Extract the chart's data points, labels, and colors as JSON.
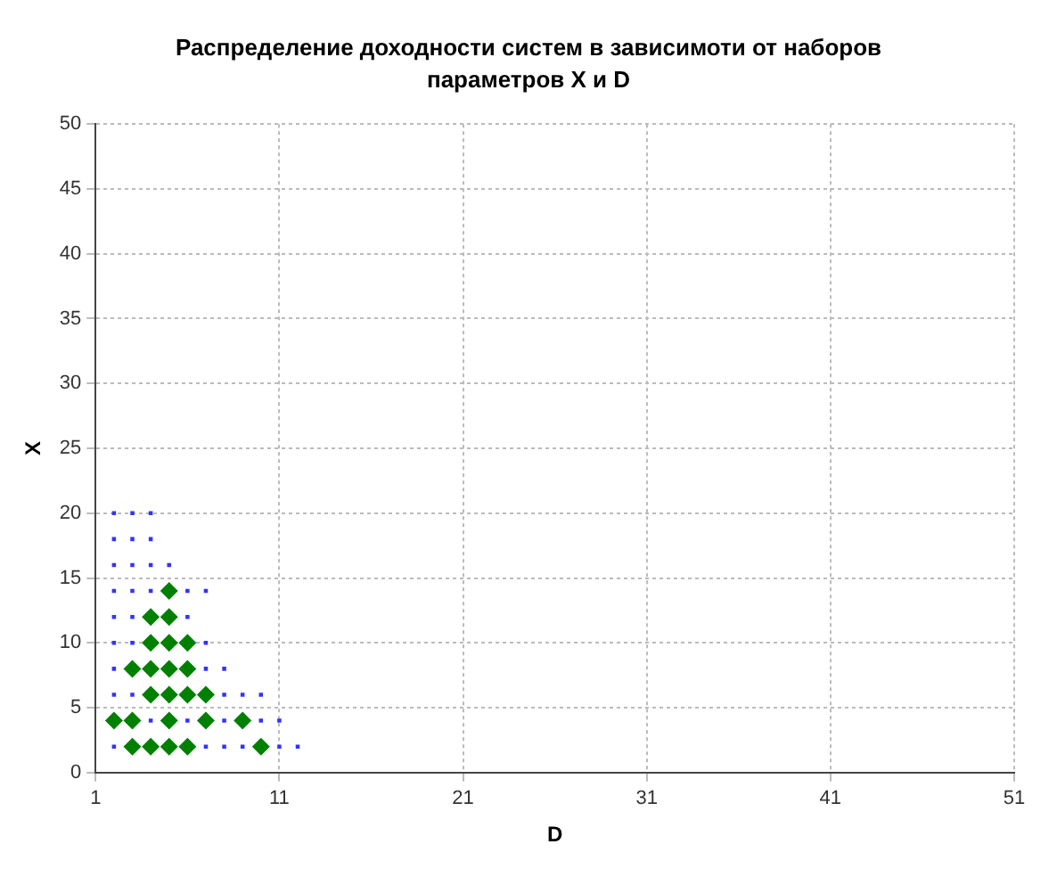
{
  "chart_data": {
    "type": "scatter",
    "title": "Распределение доходности систем в зависимоти от наборов параметров X и D",
    "xlabel": "D",
    "ylabel": "X",
    "xlim": [
      1,
      51
    ],
    "xticks": [
      1,
      11,
      21,
      31,
      41,
      51
    ],
    "ylim": [
      0,
      50
    ],
    "yticks": [
      0,
      5,
      10,
      15,
      20,
      25,
      30,
      35,
      40,
      45,
      50
    ],
    "grid": true,
    "legend": false,
    "series": [
      {
        "color": "#3333ff",
        "marker": "square",
        "x": [
          2,
          3,
          4,
          2,
          3,
          4,
          2,
          3,
          4,
          5,
          2,
          3,
          4,
          6,
          7,
          2,
          3,
          6,
          2,
          3,
          7,
          2,
          7,
          8,
          2,
          3,
          8,
          9,
          10,
          4,
          6,
          8,
          10,
          11,
          2,
          7,
          8,
          9,
          11,
          12
        ],
        "values": [
          20,
          20,
          20,
          18,
          18,
          18,
          16,
          16,
          16,
          16,
          14,
          14,
          14,
          14,
          14,
          12,
          12,
          12,
          10,
          10,
          10,
          8,
          8,
          8,
          6,
          6,
          6,
          6,
          6,
          4,
          4,
          4,
          4,
          4,
          2,
          2,
          2,
          2,
          2,
          2
        ]
      },
      {
        "color": "#008000",
        "marker": "diamond",
        "x": [
          5,
          4,
          5,
          4,
          5,
          6,
          3,
          4,
          5,
          6,
          4,
          5,
          6,
          7,
          2,
          3,
          5,
          7,
          9,
          3,
          4,
          5,
          6,
          10
        ],
        "values": [
          14,
          12,
          12,
          10,
          10,
          10,
          8,
          8,
          8,
          8,
          6,
          6,
          6,
          6,
          4,
          4,
          4,
          4,
          4,
          2,
          2,
          2,
          2,
          2
        ]
      }
    ]
  }
}
